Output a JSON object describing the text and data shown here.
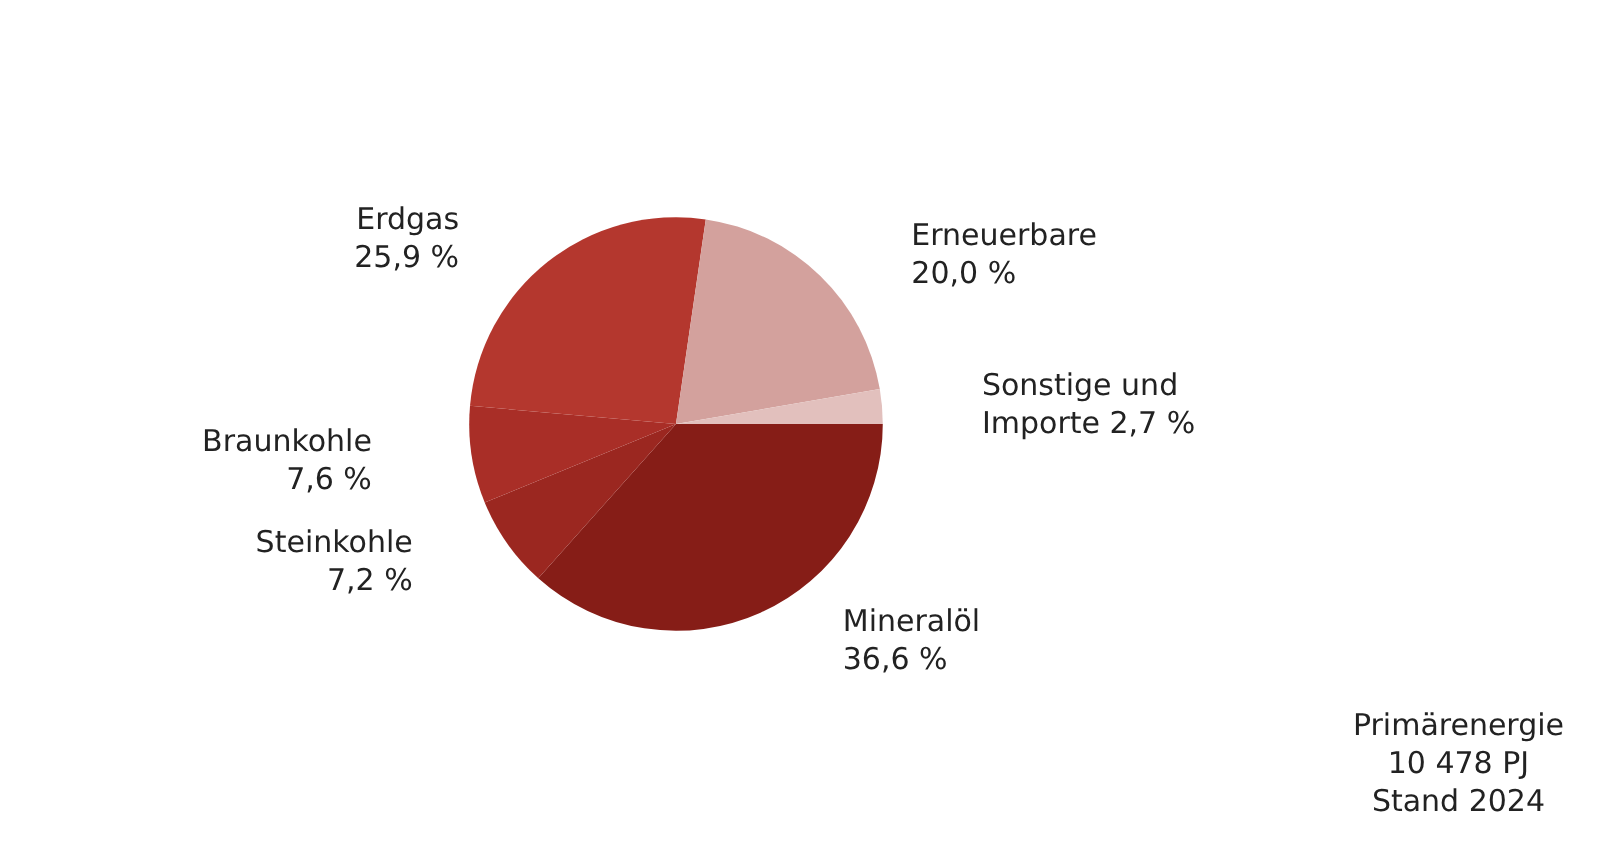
{
  "chart_data": {
    "type": "pie",
    "categories": [
      "Mineralöl",
      "Steinkohle",
      "Braunkohle",
      "Erdgas",
      "Erneuerbare",
      "Sonstige und Importe"
    ],
    "values": [
      36.6,
      7.2,
      7.6,
      25.9,
      20.0,
      2.7
    ],
    "value_labels": [
      "36,6 %",
      "7,2 %",
      "7,6 %",
      "25,9 %",
      "20,0 %",
      "2,7 %"
    ],
    "colors": [
      "#861d17",
      "#9b2720",
      "#a92e27",
      "#b4372e",
      "#d3a19d",
      "#e2c0bd"
    ],
    "annotations": [
      "Primärenergie\n10 478 PJ\nStand 2024"
    ],
    "legend": false
  }
}
